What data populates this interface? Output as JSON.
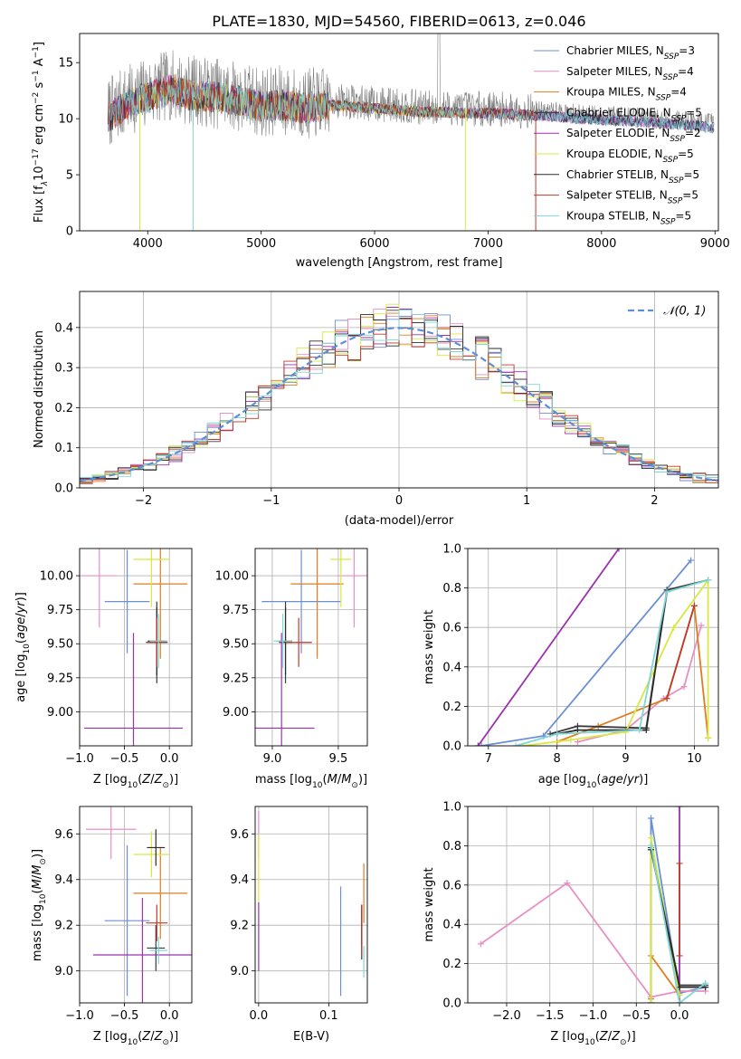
{
  "figure": {
    "title": "PLATE=1830, MJD=54560, FIBERID=0613, z=0.046"
  },
  "chart_data": [
    {
      "id": "spectrum",
      "type": "line",
      "xlabel": "wavelength [Angstrom, rest frame]",
      "ylabel_parts": [
        "Flux [f",
        "λ",
        "10",
        "−17",
        " erg cm",
        "−2",
        " s",
        "−1",
        " A",
        "−1",
        "]"
      ],
      "xlim": [
        3400,
        9030
      ],
      "ylim": [
        0,
        17.6
      ],
      "xticks": [
        4000,
        5000,
        6000,
        7000,
        8000,
        9000
      ],
      "yticks": [
        0,
        5,
        10,
        15
      ],
      "legend_position": "top-right",
      "legend": [
        {
          "base": "Chabrier MILES, N",
          "sub": "SSP",
          "tail": "=3",
          "color": "#6b8fd6"
        },
        {
          "base": "Salpeter MILES, N",
          "sub": "SSP",
          "tail": "=4",
          "color": "#e88fc4"
        },
        {
          "base": "Kroupa MILES, N",
          "sub": "SSP",
          "tail": "=4",
          "color": "#e07b1f"
        },
        {
          "base": "Chabrier ELODIE, N",
          "sub": "SSP",
          "tail": "=5",
          "color": "#3b3b3b"
        },
        {
          "base": "Salpeter ELODIE, N",
          "sub": "SSP",
          "tail": "=2",
          "color": "#9b30b0"
        },
        {
          "base": "Kroupa ELODIE, N",
          "sub": "SSP",
          "tail": "=5",
          "color": "#d8e840"
        },
        {
          "base": "Chabrier STELIB, N",
          "sub": "SSP",
          "tail": "=5",
          "color": "#2b2b2b"
        },
        {
          "base": "Salpeter STELIB, N",
          "sub": "SSP",
          "tail": "=5",
          "color": "#c0392b"
        },
        {
          "base": "Kroupa STELIB, N",
          "sub": "SSP",
          "tail": "=5",
          "color": "#7fd6d6"
        }
      ],
      "data_color": "#808080",
      "data_profile": {
        "x": [
          3650,
          3800,
          3950,
          4050,
          4200,
          4400,
          4600,
          4800,
          5000,
          5200,
          5400,
          5600,
          5800,
          6000,
          6200,
          6400,
          6600,
          6800,
          7000,
          7200,
          7400,
          7600,
          7800,
          8000,
          8200,
          8400,
          8600,
          8800,
          8980
        ],
        "y": [
          10.5,
          11.5,
          12.2,
          12.5,
          13.0,
          12.5,
          12.3,
          12.0,
          11.5,
          11.6,
          11.3,
          11.6,
          11.5,
          11.3,
          11.2,
          11.0,
          11.0,
          10.9,
          10.9,
          10.8,
          10.7,
          10.6,
          10.4,
          10.3,
          10.2,
          10.1,
          9.9,
          9.8,
          9.6
        ]
      }
    },
    {
      "id": "residual-histogram",
      "type": "step-histogram",
      "xlabel": "(data-model)/error",
      "ylabel": "Normed distribution",
      "xlim": [
        -2.5,
        2.5
      ],
      "ylim": [
        0,
        0.49
      ],
      "xticks": [
        -2,
        -1,
        0,
        1,
        2
      ],
      "xticklabels": [
        "−2",
        "−1",
        "0",
        "1",
        "2"
      ],
      "yticks": [
        0.0,
        0.1,
        0.2,
        0.3,
        0.4
      ],
      "yticklabels": [
        "0.0",
        "0.1",
        "0.2",
        "0.3",
        "0.4"
      ],
      "grid": true,
      "legend_position": "top-right",
      "legend_label": "𝒩(0, 1)",
      "normal_color": "#5b8fd6",
      "bins": {
        "start": -2.5,
        "width": 0.1
      },
      "series_colors": [
        "#6b8fd6",
        "#e88fc4",
        "#e07b1f",
        "#3b3b3b",
        "#9b30b0",
        "#d8e840",
        "#2b2b2b",
        "#c0392b",
        "#7fd6d6"
      ]
    },
    {
      "id": "age-vs-Z",
      "type": "errorbar",
      "xlabel": "Z [log10(Z/Z⊙)]",
      "ylabel": "age  [log10(age/yr)]",
      "xlim": [
        -1.0,
        0.25
      ],
      "ylim": [
        8.75,
        10.2
      ],
      "xticks": [
        -1.0,
        -0.5,
        0.0
      ],
      "xticklabels": [
        "−1.0",
        "−0.5",
        "0.0"
      ],
      "yticks": [
        9.0,
        9.25,
        9.5,
        9.75,
        10.0
      ],
      "yticklabels": [
        "9.00",
        "9.25",
        "9.50",
        "9.75",
        "10.00"
      ],
      "grid": true,
      "points": [
        {
          "x": -0.47,
          "xerr": 0.25,
          "y": 9.81,
          "yerr": 0.38,
          "color": "#6b8fd6"
        },
        {
          "x": -0.78,
          "xerr": 0.2,
          "y": 10.0,
          "yerr": 0.38,
          "color": "#e88fc4"
        },
        {
          "x": -0.1,
          "xerr": 0.3,
          "y": 9.94,
          "yerr": 0.55,
          "color": "#e07b1f"
        },
        {
          "x": -0.14,
          "xerr": 0.12,
          "y": 9.51,
          "yerr": 0.3,
          "color": "#3b3b3b"
        },
        {
          "x": -0.4,
          "xerr": 0.55,
          "y": 8.88,
          "yerr": 0.7,
          "color": "#9b30b0"
        },
        {
          "x": -0.2,
          "xerr": 0.2,
          "y": 10.12,
          "yerr": 0.35,
          "color": "#d8e840"
        },
        {
          "x": -0.14,
          "xerr": 0.1,
          "y": 9.52,
          "yerr": 0.25,
          "color": "#2b2b2b"
        },
        {
          "x": -0.14,
          "xerr": 0.1,
          "y": 9.51,
          "yerr": 0.18,
          "color": "#c0392b"
        },
        {
          "x": -0.12,
          "xerr": 0.1,
          "y": 9.52,
          "yerr": 0.2,
          "color": "#7fd6d6"
        }
      ]
    },
    {
      "id": "age-vs-mass",
      "type": "errorbar",
      "xlabel": "mass [log10(M/M⊙)]",
      "xlim": [
        8.87,
        9.72
      ],
      "ylim": [
        8.75,
        10.2
      ],
      "xticks": [
        9.0,
        9.5
      ],
      "xticklabels": [
        "9.0",
        "9.5"
      ],
      "yticks": [
        9.0,
        9.25,
        9.5,
        9.75,
        10.0
      ],
      "yticklabels": [
        "9.00",
        "9.25",
        "9.50",
        "9.75",
        "10.00"
      ],
      "grid": true,
      "points": [
        {
          "x": 9.22,
          "xerr": 0.3,
          "y": 9.81,
          "yerr": 0.38,
          "color": "#6b8fd6"
        },
        {
          "x": 9.62,
          "xerr": 0.12,
          "y": 10.0,
          "yerr": 0.38,
          "color": "#e88fc4"
        },
        {
          "x": 9.34,
          "xerr": 0.2,
          "y": 9.94,
          "yerr": 0.55,
          "color": "#e07b1f"
        },
        {
          "x": 9.1,
          "xerr": 0.05,
          "y": 9.51,
          "yerr": 0.3,
          "color": "#3b3b3b"
        },
        {
          "x": 9.07,
          "xerr": 0.25,
          "y": 8.88,
          "yerr": 0.7,
          "color": "#9b30b0"
        },
        {
          "x": 9.52,
          "xerr": 0.08,
          "y": 10.12,
          "yerr": 0.35,
          "color": "#d8e840"
        },
        {
          "x": 9.1,
          "xerr": 0.05,
          "y": 9.52,
          "yerr": 0.25,
          "color": "#2b2b2b"
        },
        {
          "x": 9.2,
          "xerr": 0.1,
          "y": 9.51,
          "yerr": 0.18,
          "color": "#c0392b"
        },
        {
          "x": 9.08,
          "xerr": 0.07,
          "y": 9.52,
          "yerr": 0.2,
          "color": "#7fd6d6"
        }
      ]
    },
    {
      "id": "mass-weight-vs-age",
      "type": "cumulative-line",
      "xlabel": "age  [log10(age/yr)]",
      "ylabel": "mass weight",
      "xlim": [
        6.7,
        10.35
      ],
      "ylim": [
        0,
        1
      ],
      "xticks": [
        7,
        8,
        9,
        10
      ],
      "yticks": [
        0.0,
        0.2,
        0.4,
        0.6,
        0.8,
        1.0
      ],
      "yticklabels": [
        "0.0",
        "0.2",
        "0.4",
        "0.6",
        "0.8",
        "1.0"
      ],
      "grid": true,
      "series": [
        {
          "color": "#6b8fd6",
          "x": [
            6.9,
            7.8,
            9.95
          ],
          "y": [
            0.0,
            0.05,
            0.94
          ]
        },
        {
          "color": "#e88fc4",
          "x": [
            8.3,
            9.0,
            9.55,
            9.85,
            10.1
          ],
          "y": [
            0.02,
            0.08,
            0.24,
            0.3,
            0.61
          ]
        },
        {
          "color": "#e07b1f",
          "x": [
            8.0,
            8.6,
            9.6,
            10.0,
            10.2
          ],
          "y": [
            0.02,
            0.1,
            0.24,
            0.71,
            0.04
          ]
        },
        {
          "color": "#3b3b3b",
          "x": [
            7.9,
            8.3,
            9.3,
            9.6,
            10.2
          ],
          "y": [
            0.06,
            0.1,
            0.09,
            0.79,
            0.84
          ]
        },
        {
          "color": "#9b30b0",
          "x": [
            6.85,
            8.9
          ],
          "y": [
            0.0,
            1.0
          ]
        },
        {
          "color": "#d8e840",
          "x": [
            7.5,
            8.2,
            9.0,
            9.7,
            10.2,
            10.2
          ],
          "y": [
            0.0,
            0.03,
            0.07,
            0.6,
            0.84,
            0.04
          ]
        },
        {
          "color": "#2b2b2b",
          "x": [
            8.0,
            8.3,
            9.3,
            9.6
          ],
          "y": [
            0.06,
            0.08,
            0.08,
            0.78
          ]
        },
        {
          "color": "#c0392b",
          "x": [
            9.6,
            10.0
          ],
          "y": [
            0.24,
            0.71
          ]
        },
        {
          "color": "#7fd6d6",
          "x": [
            7.4,
            8.0,
            9.2,
            9.6,
            10.2
          ],
          "y": [
            0.0,
            0.06,
            0.08,
            0.78,
            0.84
          ]
        }
      ]
    },
    {
      "id": "mass-vs-Z",
      "type": "errorbar",
      "xlabel": "Z [log10(Z/Z⊙)]",
      "ylabel": "mass [log10(M/M⊙)]",
      "xlim": [
        -1.0,
        0.25
      ],
      "ylim": [
        8.86,
        9.72
      ],
      "xticks": [
        -1.0,
        -0.5,
        0.0
      ],
      "xticklabels": [
        "−1.0",
        "−0.5",
        "0.0"
      ],
      "yticks": [
        9.0,
        9.2,
        9.4,
        9.6
      ],
      "yticklabels": [
        "9.0",
        "9.2",
        "9.4",
        "9.6"
      ],
      "grid": true,
      "points": [
        {
          "x": -0.47,
          "xerr": 0.25,
          "y": 9.22,
          "yerr": 0.33,
          "color": "#6b8fd6"
        },
        {
          "x": -0.65,
          "xerr": 0.28,
          "y": 9.62,
          "yerr": 0.13,
          "color": "#e88fc4"
        },
        {
          "x": -0.1,
          "xerr": 0.3,
          "y": 9.34,
          "yerr": 0.2,
          "color": "#e07b1f"
        },
        {
          "x": -0.15,
          "xerr": 0.1,
          "y": 9.1,
          "yerr": 0.1,
          "color": "#3b3b3b"
        },
        {
          "x": -0.3,
          "xerr": 0.55,
          "y": 9.07,
          "yerr": 0.25,
          "color": "#9b30b0"
        },
        {
          "x": -0.2,
          "xerr": 0.2,
          "y": 9.51,
          "yerr": 0.1,
          "color": "#d8e840"
        },
        {
          "x": -0.15,
          "xerr": 0.1,
          "y": 9.54,
          "yerr": 0.08,
          "color": "#2b2b2b"
        },
        {
          "x": -0.14,
          "xerr": 0.12,
          "y": 9.21,
          "yerr": 0.08,
          "color": "#c0392b"
        },
        {
          "x": -0.12,
          "xerr": 0.1,
          "y": 9.09,
          "yerr": 0.06,
          "color": "#7fd6d6"
        }
      ]
    },
    {
      "id": "mass-vs-ebv",
      "type": "errorbar",
      "xlabel": "E(B-V)",
      "xlim": [
        -0.005,
        0.155
      ],
      "ylim": [
        8.86,
        9.72
      ],
      "xticks": [
        0.0,
        0.1
      ],
      "xticklabels": [
        "0.0",
        "0.1"
      ],
      "yticks": [
        9.0,
        9.2,
        9.4,
        9.6
      ],
      "yticklabels": [
        "9.0",
        "9.2",
        "9.4",
        "9.6"
      ],
      "grid": true,
      "points": [
        {
          "x": 0.117,
          "xerr": 0.0,
          "y": 9.13,
          "yerr": 0.24,
          "color": "#6b8fd6"
        },
        {
          "x": 0.0,
          "xerr": 0.0,
          "y": 9.6,
          "yerr": 0.1,
          "color": "#e88fc4"
        },
        {
          "x": 0.15,
          "xerr": 0.0,
          "y": 9.34,
          "yerr": 0.13,
          "color": "#e07b1f"
        },
        {
          "x": 0.147,
          "xerr": 0.0,
          "y": 9.17,
          "yerr": 0.12,
          "color": "#3b3b3b"
        },
        {
          "x": 0.0,
          "xerr": 0.0,
          "y": 9.15,
          "yerr": 0.15,
          "color": "#9b30b0"
        },
        {
          "x": 0.0,
          "xerr": 0.0,
          "y": 9.45,
          "yerr": 0.15,
          "color": "#d8e840"
        },
        {
          "x": 0.147,
          "xerr": 0.0,
          "y": 9.2,
          "yerr": 0.09,
          "color": "#2b2b2b"
        },
        {
          "x": 0.147,
          "xerr": 0.0,
          "y": 9.18,
          "yerr": 0.11,
          "color": "#c0392b"
        },
        {
          "x": 0.15,
          "xerr": 0.0,
          "y": 9.04,
          "yerr": 0.07,
          "color": "#7fd6d6"
        }
      ]
    },
    {
      "id": "mass-weight-vs-Z",
      "type": "cumulative-line",
      "xlabel": "Z [log10(Z/Z⊙)]",
      "ylabel": "mass weight",
      "xlim": [
        -2.45,
        0.45
      ],
      "ylim": [
        0,
        1
      ],
      "xticks": [
        -2.0,
        -1.5,
        -1.0,
        -0.5,
        0.0
      ],
      "xticklabels": [
        "−2.0",
        "−1.5",
        "−1.0",
        "−0.5",
        "0.0"
      ],
      "yticks": [
        0.0,
        0.2,
        0.4,
        0.6,
        0.8,
        1.0
      ],
      "yticklabels": [
        "0.0",
        "0.2",
        "0.4",
        "0.6",
        "0.8",
        "1.0"
      ],
      "grid": true,
      "series": [
        {
          "color": "#6b8fd6",
          "x": [
            -0.33,
            -0.33,
            0.0,
            0.3
          ],
          "y": [
            0.0,
            0.94,
            0.05,
            0.08
          ]
        },
        {
          "color": "#e88fc4",
          "x": [
            -2.3,
            -1.3,
            -0.33,
            0.0,
            0.3
          ],
          "y": [
            0.3,
            0.61,
            0.03,
            0.06,
            0.06
          ]
        },
        {
          "color": "#e07b1f",
          "x": [
            -0.33,
            -0.33,
            0.0,
            0.0
          ],
          "y": [
            0.02,
            0.24,
            0.04,
            0.0
          ]
        },
        {
          "color": "#3b3b3b",
          "x": [
            -0.33,
            -0.33,
            0.0,
            0.3
          ],
          "y": [
            0.0,
            0.79,
            0.09,
            0.09
          ]
        },
        {
          "color": "#9b30b0",
          "x": [
            0.0,
            0.0
          ],
          "y": [
            0.0,
            1.0
          ]
        },
        {
          "color": "#d8e840",
          "x": [
            -0.33,
            -0.33,
            0.0
          ],
          "y": [
            0.0,
            0.84,
            0.04
          ]
        },
        {
          "color": "#2b2b2b",
          "x": [
            -0.33,
            0.0,
            0.3
          ],
          "y": [
            0.78,
            0.08,
            0.08
          ]
        },
        {
          "color": "#c0392b",
          "x": [
            0.0,
            0.0
          ],
          "y": [
            0.71,
            0.24
          ]
        },
        {
          "color": "#7fd6d6",
          "x": [
            -0.33,
            0.0,
            0.3
          ],
          "y": [
            0.8,
            0.0,
            0.1
          ]
        }
      ]
    }
  ]
}
